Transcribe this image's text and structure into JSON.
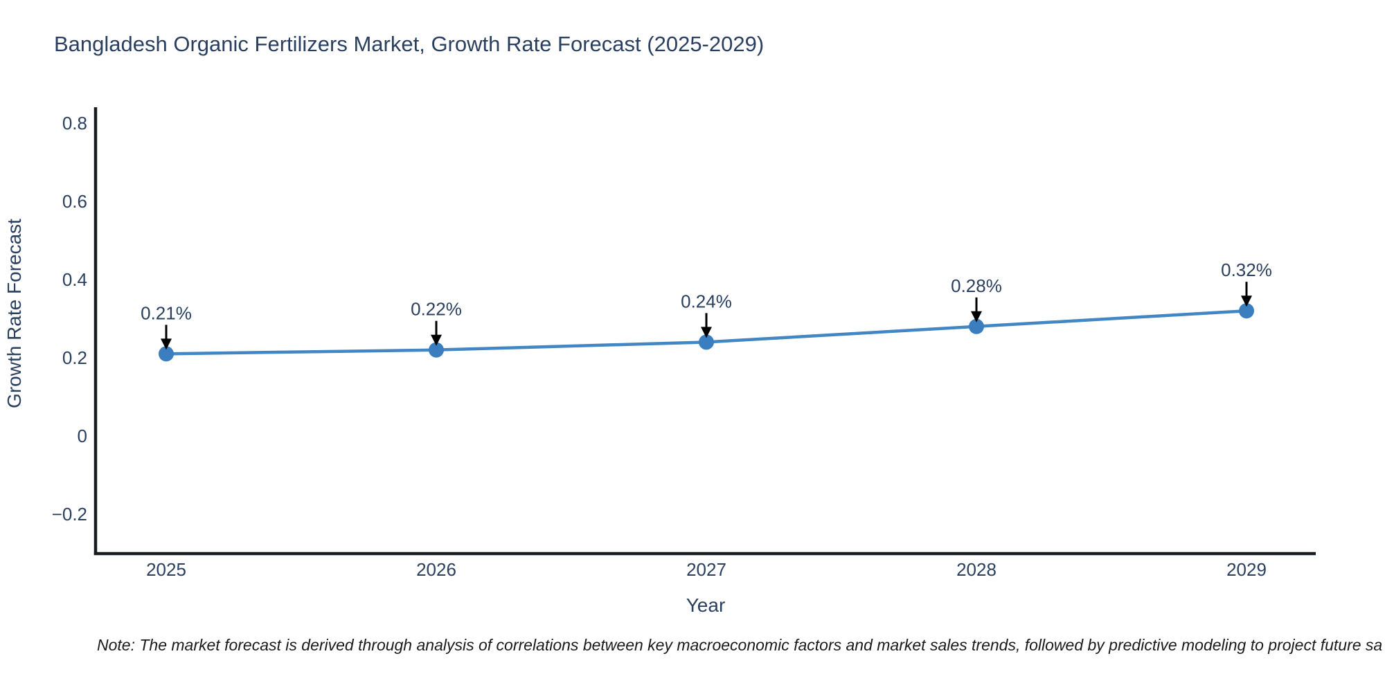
{
  "chart_data": {
    "type": "line",
    "title": "Bangladesh Organic Fertilizers Market, Growth Rate Forecast (2025-2029)",
    "xlabel": "Year",
    "ylabel": "Growth Rate Forecast",
    "categories": [
      "2025",
      "2026",
      "2027",
      "2028",
      "2029"
    ],
    "x": [
      2025,
      2026,
      2027,
      2028,
      2029
    ],
    "values": [
      0.21,
      0.22,
      0.24,
      0.28,
      0.32
    ],
    "point_labels": [
      "0.21%",
      "0.22%",
      "0.24%",
      "0.28%",
      "0.32%"
    ],
    "series": [
      {
        "name": "Growth Rate Forecast",
        "values": [
          0.21,
          0.22,
          0.24,
          0.28,
          0.32
        ]
      }
    ],
    "y_ticks": [
      {
        "label": "−0.2",
        "value": -0.2
      },
      {
        "label": "0",
        "value": 0
      },
      {
        "label": "0.2",
        "value": 0.2
      },
      {
        "label": "0.4",
        "value": 0.4
      },
      {
        "label": "0.6",
        "value": 0.6
      },
      {
        "label": "0.8",
        "value": 0.8
      }
    ],
    "ylim": [
      -0.3,
      0.84
    ],
    "xlim": [
      2024.74,
      2029.26
    ],
    "grid": false,
    "legend_position": "none",
    "colors": {
      "line": "#4286c4",
      "marker": "#3a7ebf",
      "arrow": "#000000",
      "axis": "#161a21",
      "text": "#2a3f5f"
    },
    "note": "Note: The market forecast is derived through analysis of correlations between key macroeconomic factors and market sales trends, followed by predictive modeling to project future sa"
  }
}
